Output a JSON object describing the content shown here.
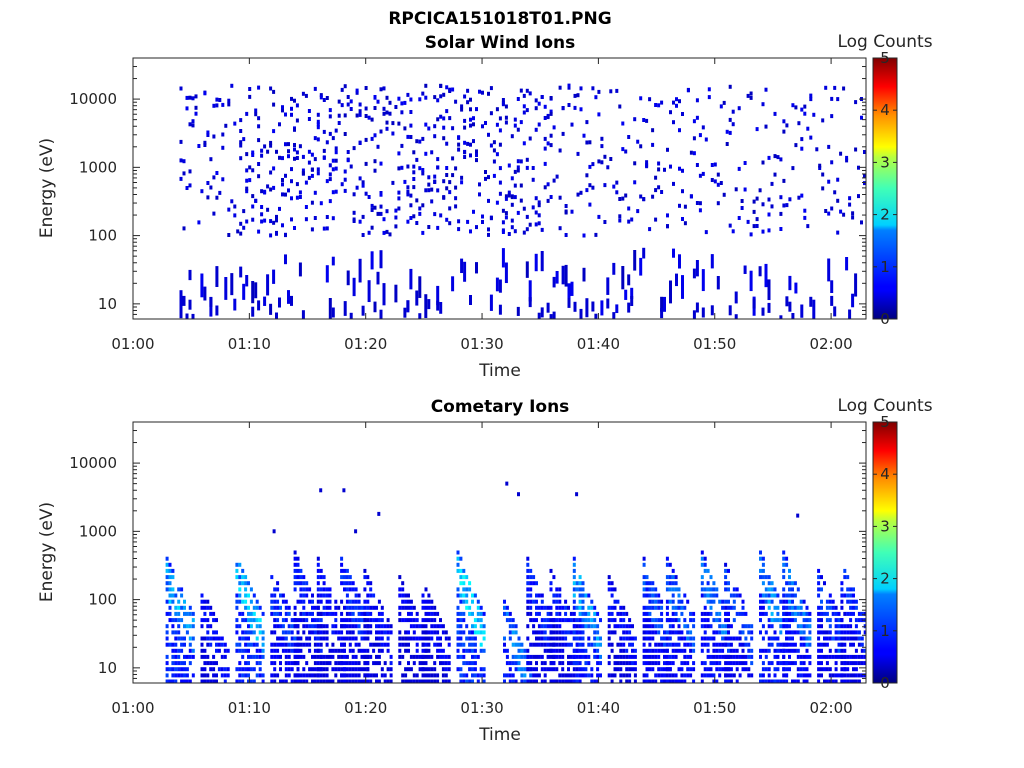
{
  "figure": {
    "title": "RPCICA151018T01.PNG"
  },
  "chart_data": [
    {
      "type": "heatmap",
      "title": "Solar Wind Ions",
      "xlabel": "Time",
      "ylabel": "Energy (eV)",
      "x_ticks": [
        "01:00",
        "01:10",
        "01:20",
        "01:30",
        "01:40",
        "01:50",
        "02:00"
      ],
      "xlim": [
        "01:00",
        "02:03"
      ],
      "y_scale": "log",
      "y_ticks": [
        "10",
        "100",
        "1000",
        "10000"
      ],
      "ylim": [
        6,
        40000
      ],
      "colorbar": {
        "label": "Log Counts",
        "range": [
          0,
          5
        ],
        "ticks": [
          "0",
          "1",
          "2",
          "3",
          "4",
          "5"
        ],
        "colormap": "jet"
      },
      "data_onset": "01:04",
      "description_levels": "sparse single-count (log ~0) scatter from ~10 eV to ~30000 eV, densest 200-3000 eV between 01:10 and 01:35",
      "max_level": 0.3
    },
    {
      "type": "heatmap",
      "title": "Cometary Ions",
      "xlabel": "Time",
      "ylabel": "Energy (eV)",
      "x_ticks": [
        "01:00",
        "01:10",
        "01:20",
        "01:30",
        "01:40",
        "01:50",
        "02:00"
      ],
      "xlim": [
        "01:00",
        "02:03"
      ],
      "y_scale": "log",
      "y_ticks": [
        "10",
        "100",
        "1000",
        "10000"
      ],
      "ylim": [
        6,
        40000
      ],
      "colorbar": {
        "label": "Log Counts",
        "range": [
          0,
          5
        ],
        "ticks": [
          "0",
          "1",
          "2",
          "3",
          "4",
          "5"
        ],
        "colormap": "jet"
      },
      "bursts": [
        {
          "t": "01:04",
          "emax": 450,
          "peak": 1.5
        },
        {
          "t": "01:07",
          "emax": 150,
          "peak": 0.5
        },
        {
          "t": "01:10",
          "emax": 500,
          "peak": 1.6
        },
        {
          "t": "01:13",
          "emax": 300,
          "peak": 0.8
        },
        {
          "t": "01:15",
          "emax": 500,
          "peak": 0.6
        },
        {
          "t": "01:17",
          "emax": 400,
          "peak": 0.5
        },
        {
          "t": "01:19",
          "emax": 500,
          "peak": 0.7
        },
        {
          "t": "01:21",
          "emax": 300,
          "peak": 0.5
        },
        {
          "t": "01:24",
          "emax": 250,
          "peak": 0.4
        },
        {
          "t": "01:26",
          "emax": 200,
          "peak": 0.4
        },
        {
          "t": "01:29",
          "emax": 500,
          "peak": 1.7
        },
        {
          "t": "01:33",
          "emax": 100,
          "peak": 1.2
        },
        {
          "t": "01:35",
          "emax": 400,
          "peak": 0.6
        },
        {
          "t": "01:37",
          "emax": 300,
          "peak": 0.6
        },
        {
          "t": "01:39",
          "emax": 400,
          "peak": 1.4
        },
        {
          "t": "01:42",
          "emax": 250,
          "peak": 0.5
        },
        {
          "t": "01:45",
          "emax": 400,
          "peak": 0.9
        },
        {
          "t": "01:47",
          "emax": 450,
          "peak": 1.0
        },
        {
          "t": "01:50",
          "emax": 500,
          "peak": 1.1
        },
        {
          "t": "01:52",
          "emax": 350,
          "peak": 0.8
        },
        {
          "t": "01:55",
          "emax": 500,
          "peak": 1.3
        },
        {
          "t": "01:57",
          "emax": 500,
          "peak": 1.1
        },
        {
          "t": "02:00",
          "emax": 300,
          "peak": 0.8
        },
        {
          "t": "02:02",
          "emax": 400,
          "peak": 0.7
        }
      ]
    }
  ]
}
